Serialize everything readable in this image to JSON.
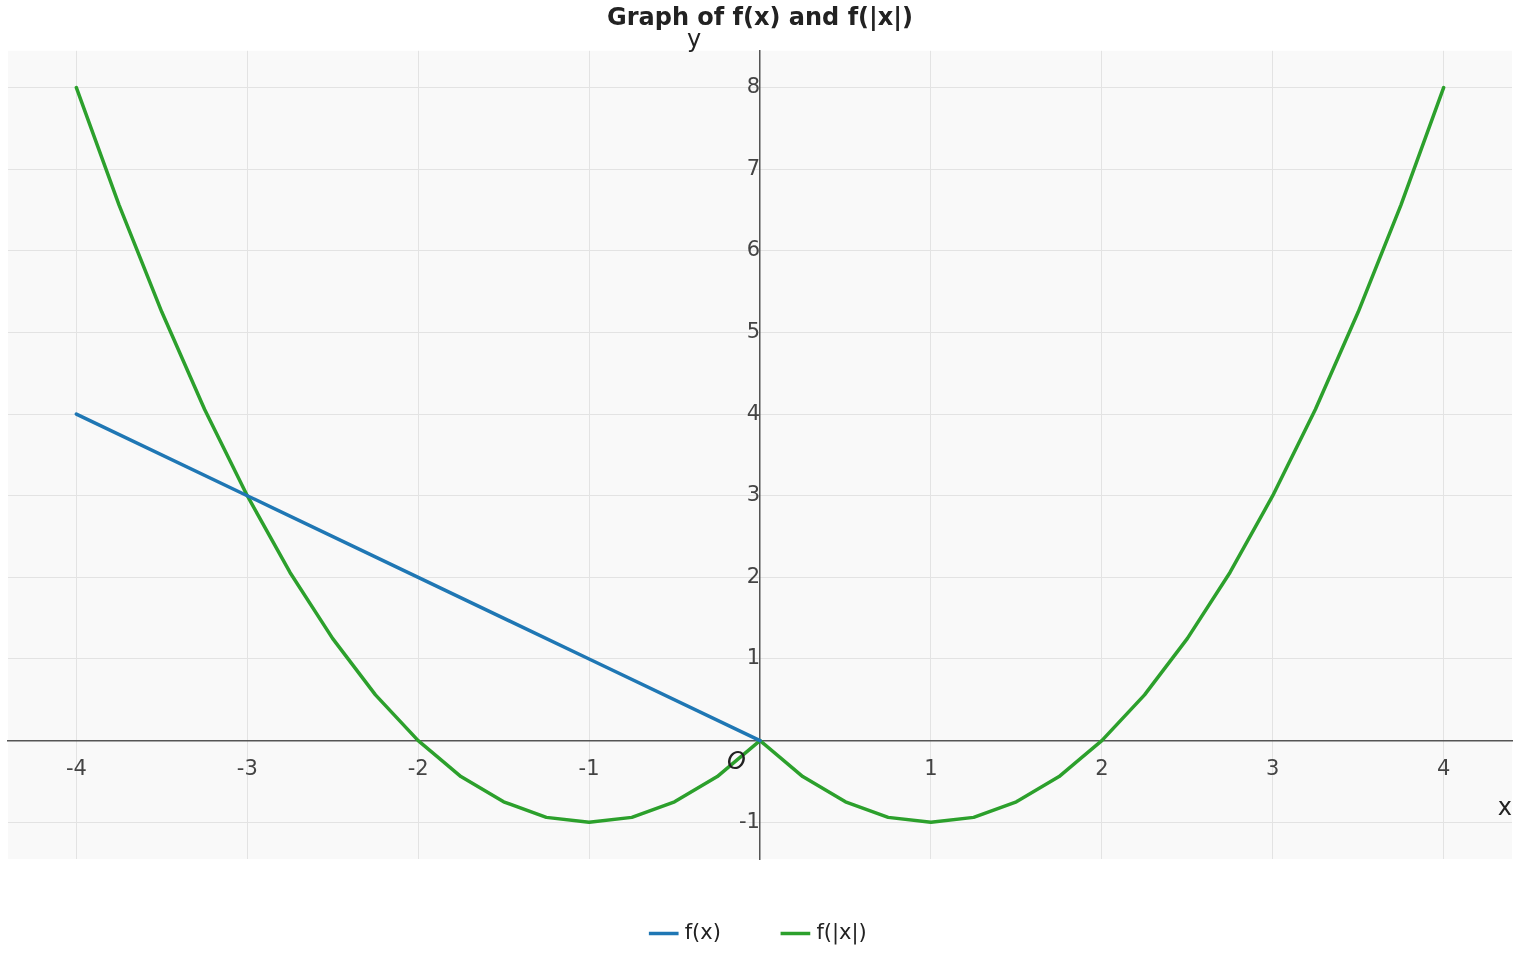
{
  "chart_data": {
    "type": "line",
    "title": "Graph of f(x) and f(|x|)",
    "xlabel": "x",
    "ylabel": "y",
    "annotations": [
      {
        "text": "O",
        "x": 0,
        "y": 0
      }
    ],
    "series": [
      {
        "name": "f(x)",
        "color": "#1f77b4",
        "x": [
          -4,
          -3,
          -2,
          -1,
          0
        ],
        "values": [
          4,
          3,
          2,
          1,
          0
        ]
      },
      {
        "name": "f(|x|)",
        "color": "#2ca02c",
        "x": [
          -4,
          -3.75,
          -3.5,
          -3.25,
          -3,
          -2.75,
          -2.5,
          -2.25,
          -2,
          -1.75,
          -1.5,
          -1.25,
          -1,
          -0.75,
          -0.5,
          -0.25,
          0,
          0.25,
          0.5,
          0.75,
          1,
          1.25,
          1.5,
          1.75,
          2,
          2.25,
          2.5,
          2.75,
          3,
          3.25,
          3.5,
          3.75,
          4
        ],
        "values": [
          8,
          6.56,
          5.25,
          4.06,
          3,
          2.06,
          1.25,
          0.56,
          0,
          -0.44,
          -0.75,
          -0.94,
          -1,
          -0.94,
          -0.75,
          -0.44,
          0,
          -0.44,
          -0.75,
          -0.94,
          -1,
          -0.94,
          -0.75,
          -0.44,
          0,
          0.56,
          1.25,
          2.06,
          3,
          4.06,
          5.25,
          6.56,
          8
        ]
      }
    ],
    "xlim": [
      -4.4,
      4.4
    ],
    "ylim": [
      -1.45,
      8.45
    ],
    "xticks": [
      -4,
      -3,
      -2,
      -1,
      1,
      2,
      3,
      4
    ],
    "yticks": [
      -1,
      1,
      2,
      3,
      4,
      5,
      6,
      7,
      8
    ],
    "grid": true,
    "legend": "bottom",
    "line_style": "solid",
    "marker": "none"
  }
}
